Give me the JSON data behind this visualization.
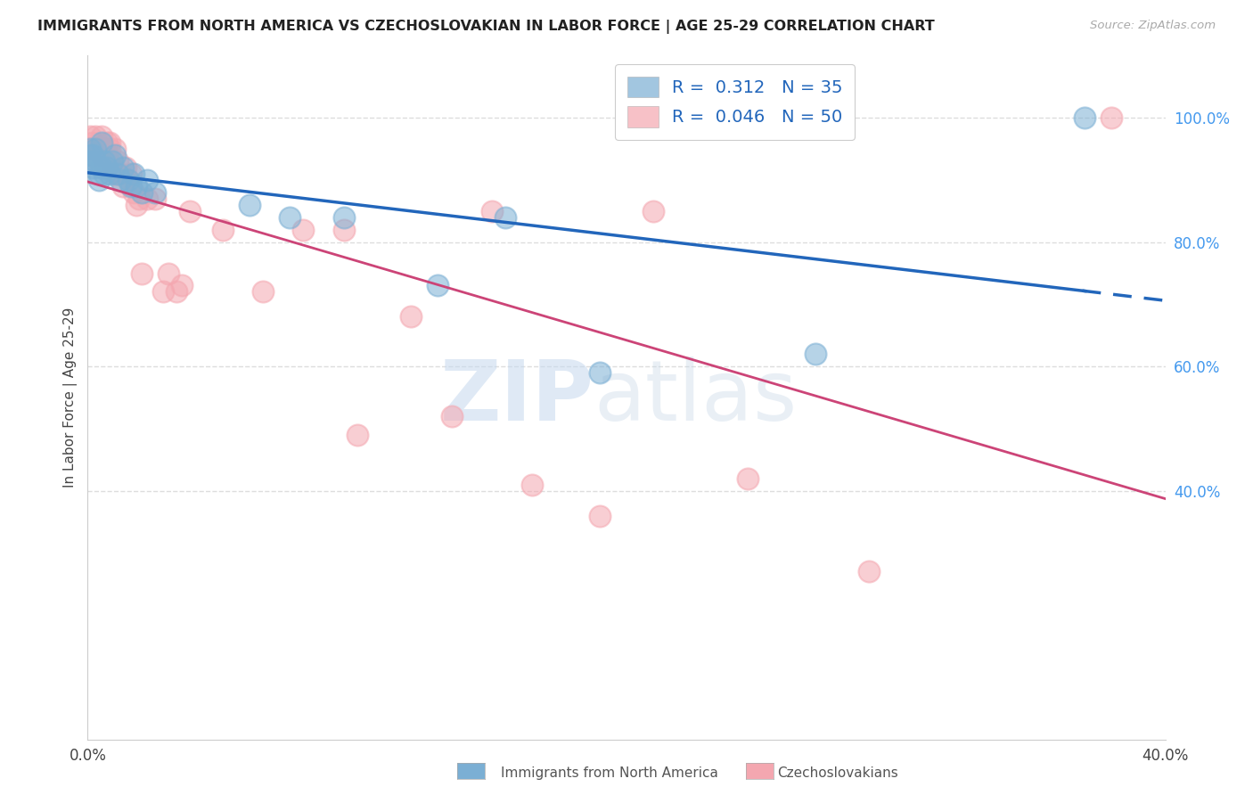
{
  "title": "IMMIGRANTS FROM NORTH AMERICA VS CZECHOSLOVAKIAN IN LABOR FORCE | AGE 25-29 CORRELATION CHART",
  "source": "Source: ZipAtlas.com",
  "ylabel": "In Labor Force | Age 25-29",
  "xlim": [
    0.0,
    0.4
  ],
  "ylim": [
    0.0,
    1.1
  ],
  "xticks": [
    0.0,
    0.1,
    0.2,
    0.3,
    0.4
  ],
  "xticklabels": [
    "0.0%",
    "",
    "",
    "",
    "40.0%"
  ],
  "yticks_right": [
    0.4,
    0.6,
    0.8,
    1.0
  ],
  "yticklabels_right": [
    "40.0%",
    "60.0%",
    "80.0%",
    "100.0%"
  ],
  "blue_scatter_x": [
    0.001,
    0.001,
    0.001,
    0.002,
    0.002,
    0.003,
    0.003,
    0.004,
    0.004,
    0.005,
    0.005,
    0.006,
    0.006,
    0.007,
    0.008,
    0.009,
    0.01,
    0.011,
    0.012,
    0.013,
    0.015,
    0.016,
    0.017,
    0.018,
    0.02,
    0.022,
    0.025,
    0.06,
    0.075,
    0.095,
    0.13,
    0.155,
    0.19,
    0.27,
    0.37
  ],
  "blue_scatter_y": [
    0.95,
    0.93,
    0.94,
    0.94,
    0.92,
    0.93,
    0.95,
    0.91,
    0.9,
    0.96,
    0.92,
    0.91,
    0.93,
    0.92,
    0.91,
    0.93,
    0.94,
    0.91,
    0.9,
    0.92,
    0.9,
    0.89,
    0.91,
    0.89,
    0.88,
    0.9,
    0.88,
    0.86,
    0.84,
    0.84,
    0.73,
    0.84,
    0.59,
    0.62,
    1.0
  ],
  "pink_scatter_x": [
    0.001,
    0.001,
    0.002,
    0.002,
    0.003,
    0.003,
    0.004,
    0.004,
    0.005,
    0.005,
    0.006,
    0.006,
    0.007,
    0.007,
    0.008,
    0.008,
    0.009,
    0.01,
    0.01,
    0.011,
    0.012,
    0.013,
    0.014,
    0.015,
    0.016,
    0.017,
    0.018,
    0.019,
    0.02,
    0.022,
    0.025,
    0.028,
    0.03,
    0.033,
    0.035,
    0.038,
    0.05,
    0.065,
    0.08,
    0.095,
    0.1,
    0.12,
    0.135,
    0.15,
    0.165,
    0.19,
    0.21,
    0.245,
    0.29,
    0.38
  ],
  "pink_scatter_y": [
    0.97,
    0.95,
    0.96,
    0.94,
    0.95,
    0.97,
    0.93,
    0.95,
    0.97,
    0.94,
    0.95,
    0.93,
    0.96,
    0.94,
    0.95,
    0.96,
    0.92,
    0.95,
    0.91,
    0.93,
    0.91,
    0.89,
    0.92,
    0.9,
    0.91,
    0.88,
    0.86,
    0.87,
    0.75,
    0.87,
    0.87,
    0.72,
    0.75,
    0.72,
    0.73,
    0.85,
    0.82,
    0.72,
    0.82,
    0.82,
    0.49,
    0.68,
    0.52,
    0.85,
    0.41,
    0.36,
    0.85,
    0.42,
    0.27,
    1.0
  ],
  "blue_color": "#7bafd4",
  "pink_color": "#f4a7b0",
  "blue_line_color": "#2266bb",
  "pink_line_color": "#cc4477",
  "R_blue": 0.312,
  "N_blue": 35,
  "R_pink": 0.046,
  "N_pink": 50,
  "legend_blue_label": "Immigrants from North America",
  "legend_pink_label": "Czechoslovakians",
  "watermark_zip": "ZIP",
  "watermark_atlas": "atlas",
  "background_color": "#ffffff",
  "grid_color": "#dddddd"
}
